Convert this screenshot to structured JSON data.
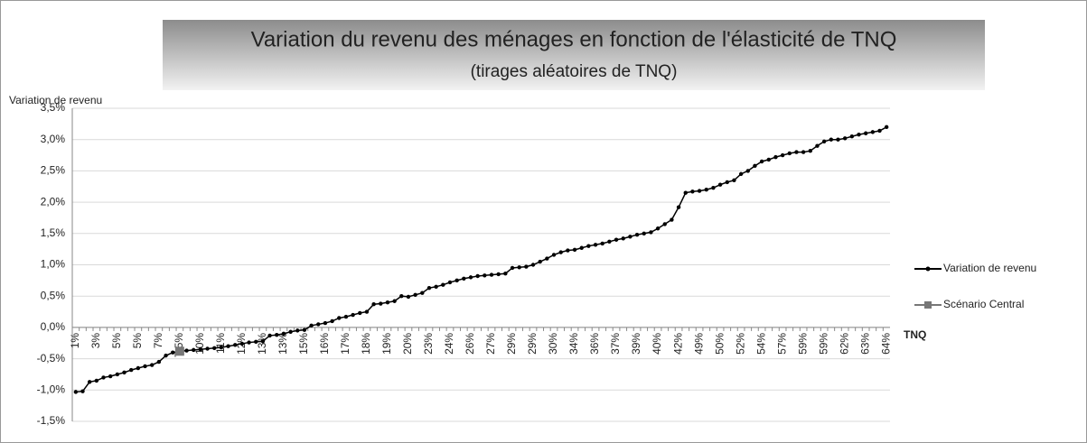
{
  "chart_data": {
    "type": "line",
    "title": "Variation du revenu des ménages en fonction de l'élasticité de TNQ",
    "subtitle": "(tirages aléatoires de TNQ)",
    "y_axis_label": "Variation de revenu",
    "x_axis_label": "TNQ",
    "categories": [
      "1%",
      null,
      null,
      "3%",
      null,
      null,
      "5%",
      null,
      null,
      "5%",
      null,
      null,
      "7%",
      null,
      null,
      "7,5%",
      null,
      null,
      "10%",
      null,
      null,
      "11%",
      null,
      null,
      "12%",
      null,
      null,
      "13%",
      null,
      null,
      "13%",
      null,
      null,
      "15%",
      null,
      null,
      "16%",
      null,
      null,
      "17%",
      null,
      null,
      "18%",
      null,
      null,
      "19%",
      null,
      null,
      "20%",
      null,
      null,
      "23%",
      null,
      null,
      "24%",
      null,
      null,
      "26%",
      null,
      null,
      "27%",
      null,
      null,
      "29%",
      null,
      null,
      "29%",
      null,
      null,
      "30%",
      null,
      null,
      "34%",
      null,
      null,
      "36%",
      null,
      null,
      "37%",
      null,
      null,
      "39%",
      null,
      null,
      "40%",
      null,
      null,
      "42%",
      null,
      null,
      "49%",
      null,
      null,
      "50%",
      null,
      null,
      "52%",
      null,
      null,
      "54%",
      null,
      null,
      "57%",
      null,
      null,
      "59%",
      null,
      null,
      "59%",
      null,
      null,
      "62%",
      null,
      null,
      "63%",
      null,
      null,
      "64%"
    ],
    "series": [
      {
        "name": "Variation de revenu",
        "color": "#000000",
        "values": [
          -1.03,
          -1.02,
          -0.87,
          -0.85,
          -0.8,
          -0.78,
          -0.75,
          -0.72,
          -0.68,
          -0.65,
          -0.62,
          -0.6,
          -0.55,
          -0.45,
          -0.4,
          -0.38,
          -0.37,
          -0.36,
          -0.35,
          -0.34,
          -0.33,
          -0.32,
          -0.3,
          -0.28,
          -0.26,
          -0.24,
          -0.23,
          -0.22,
          -0.13,
          -0.12,
          -0.1,
          -0.07,
          -0.05,
          -0.04,
          0.03,
          0.05,
          0.07,
          0.1,
          0.15,
          0.17,
          0.2,
          0.23,
          0.25,
          0.37,
          0.38,
          0.4,
          0.42,
          0.5,
          0.49,
          0.52,
          0.55,
          0.63,
          0.65,
          0.68,
          0.72,
          0.75,
          0.78,
          0.8,
          0.82,
          0.83,
          0.84,
          0.85,
          0.86,
          0.95,
          0.96,
          0.97,
          1.0,
          1.05,
          1.1,
          1.16,
          1.2,
          1.23,
          1.24,
          1.27,
          1.3,
          1.32,
          1.34,
          1.37,
          1.4,
          1.42,
          1.45,
          1.48,
          1.5,
          1.52,
          1.58,
          1.65,
          1.72,
          1.92,
          2.15,
          2.17,
          2.18,
          2.2,
          2.23,
          2.28,
          2.32,
          2.35,
          2.45,
          2.5,
          2.58,
          2.65,
          2.68,
          2.72,
          2.75,
          2.78,
          2.8,
          2.8,
          2.82,
          2.9,
          2.97,
          3.0,
          3.0,
          3.02,
          3.05,
          3.08,
          3.1,
          3.12,
          3.14,
          3.2
        ]
      },
      {
        "name": "Scénario Central",
        "color": "#777777",
        "values": [
          null,
          null,
          null,
          null,
          null,
          null,
          null,
          null,
          null,
          null,
          null,
          null,
          null,
          null,
          null,
          -0.38,
          null,
          null,
          null,
          null,
          null,
          null,
          null,
          null,
          null,
          null,
          null,
          null,
          null,
          null,
          null,
          null,
          null,
          null,
          null,
          null,
          null,
          null,
          null,
          null,
          null,
          null,
          null,
          null,
          null,
          null,
          null,
          null,
          null,
          null,
          null,
          null,
          null,
          null,
          null,
          null,
          null,
          null,
          null,
          null,
          null,
          null,
          null,
          null,
          null,
          null,
          null,
          null,
          null,
          null,
          null,
          null,
          null,
          null,
          null,
          null,
          null,
          null,
          null,
          null,
          null,
          null,
          null,
          null,
          null,
          null,
          null,
          null,
          null,
          null,
          null,
          null,
          null,
          null,
          null,
          null,
          null,
          null,
          null,
          null,
          null,
          null,
          null,
          null,
          null,
          null,
          null,
          null,
          null,
          null,
          null,
          null,
          null,
          null,
          null,
          null,
          null,
          null
        ]
      }
    ],
    "ylim": [
      -1.5,
      3.5
    ],
    "yticks": [
      {
        "value": -1.5,
        "label": "-1,5%"
      },
      {
        "value": -1.0,
        "label": "-1,0%"
      },
      {
        "value": -0.5,
        "label": "-0,5%"
      },
      {
        "value": 0,
        "label": "0,0%"
      },
      {
        "value": 0.5,
        "label": "0,5%"
      },
      {
        "value": 1.0,
        "label": "1,0%"
      },
      {
        "value": 1.5,
        "label": "1,5%"
      },
      {
        "value": 2.0,
        "label": "2,0%"
      },
      {
        "value": 2.5,
        "label": "2,5%"
      },
      {
        "value": 3.0,
        "label": "3,0%"
      },
      {
        "value": 3.5,
        "label": "3,5%"
      }
    ],
    "grid": true,
    "legend": "right"
  }
}
